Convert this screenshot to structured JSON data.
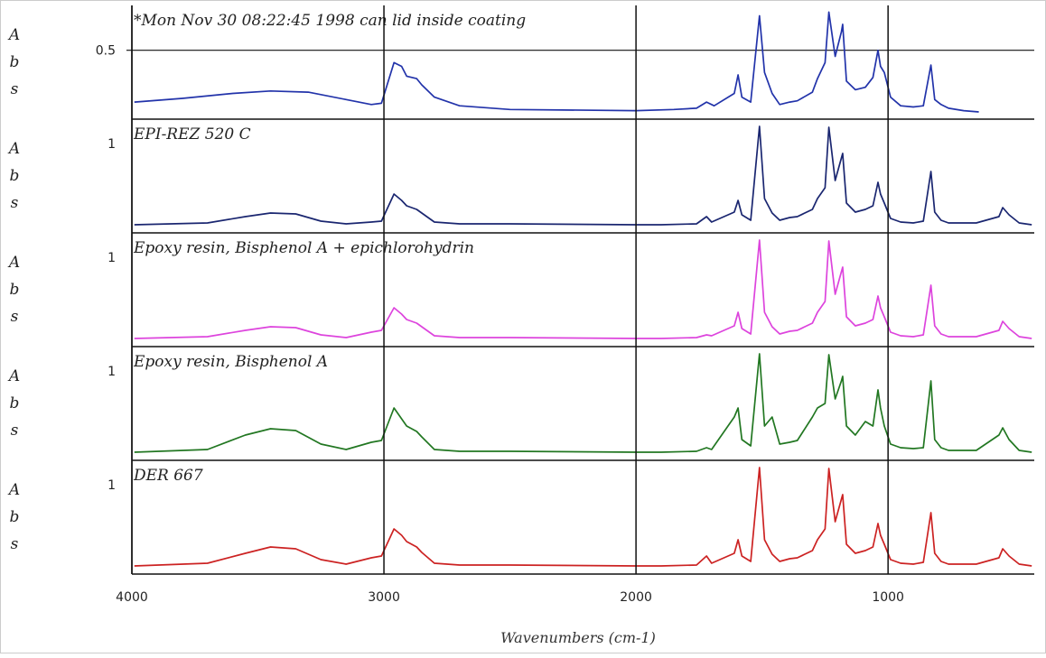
{
  "chart_data": {
    "type": "line",
    "xlabel": "Wavenumbers (cm-1)",
    "x_range": [
      4000,
      420
    ],
    "x_reversed": true,
    "x_ticks": [
      4000,
      3000,
      2000,
      1000
    ],
    "x_tick_labels": [
      "4000",
      "3000",
      "2000",
      "1000"
    ],
    "grid": true,
    "panels": [
      {
        "title": "*Mon Nov 30 08:22:45 1998 can lid inside coating",
        "ylabel_chars": [
          "A",
          "b",
          "s"
        ],
        "y_tick_label": "0.5",
        "y_tick_value": 0.5,
        "ylim": [
          0.0,
          0.82
        ],
        "color": "#2233aa",
        "points": [
          [
            3990,
            0.08
          ],
          [
            3800,
            0.11
          ],
          [
            3600,
            0.15
          ],
          [
            3450,
            0.17
          ],
          [
            3300,
            0.16
          ],
          [
            3150,
            0.1
          ],
          [
            3050,
            0.06
          ],
          [
            3010,
            0.07
          ],
          [
            2960,
            0.4
          ],
          [
            2930,
            0.37
          ],
          [
            2910,
            0.29
          ],
          [
            2870,
            0.27
          ],
          [
            2850,
            0.22
          ],
          [
            2800,
            0.12
          ],
          [
            2700,
            0.05
          ],
          [
            2500,
            0.02
          ],
          [
            2000,
            0.01
          ],
          [
            1850,
            0.02
          ],
          [
            1760,
            0.03
          ],
          [
            1720,
            0.08
          ],
          [
            1690,
            0.05
          ],
          [
            1610,
            0.15
          ],
          [
            1595,
            0.3
          ],
          [
            1580,
            0.12
          ],
          [
            1545,
            0.08
          ],
          [
            1510,
            0.78
          ],
          [
            1490,
            0.32
          ],
          [
            1460,
            0.15
          ],
          [
            1430,
            0.06
          ],
          [
            1390,
            0.08
          ],
          [
            1360,
            0.09
          ],
          [
            1300,
            0.16
          ],
          [
            1280,
            0.27
          ],
          [
            1250,
            0.4
          ],
          [
            1235,
            0.81
          ],
          [
            1210,
            0.45
          ],
          [
            1185,
            0.65
          ],
          [
            1180,
            0.71
          ],
          [
            1165,
            0.25
          ],
          [
            1130,
            0.18
          ],
          [
            1090,
            0.2
          ],
          [
            1060,
            0.28
          ],
          [
            1040,
            0.5
          ],
          [
            1030,
            0.37
          ],
          [
            1015,
            0.32
          ],
          [
            990,
            0.12
          ],
          [
            950,
            0.05
          ],
          [
            900,
            0.04
          ],
          [
            860,
            0.05
          ],
          [
            830,
            0.38
          ],
          [
            815,
            0.1
          ],
          [
            790,
            0.06
          ],
          [
            760,
            0.03
          ],
          [
            700,
            0.01
          ],
          [
            640,
            0.0
          ]
        ]
      },
      {
        "title": "EPI-REZ 520 C",
        "ylabel_chars": [
          "A",
          "b",
          "s"
        ],
        "y_tick_label": "1",
        "y_tick_value": 1,
        "ylim": [
          0.0,
          1.12
        ],
        "color": "#1a2670",
        "points": [
          [
            3990,
            0.01
          ],
          [
            3700,
            0.03
          ],
          [
            3550,
            0.1
          ],
          [
            3450,
            0.14
          ],
          [
            3350,
            0.13
          ],
          [
            3250,
            0.05
          ],
          [
            3150,
            0.02
          ],
          [
            3050,
            0.04
          ],
          [
            3010,
            0.05
          ],
          [
            2960,
            0.35
          ],
          [
            2930,
            0.28
          ],
          [
            2910,
            0.22
          ],
          [
            2870,
            0.18
          ],
          [
            2850,
            0.14
          ],
          [
            2800,
            0.04
          ],
          [
            2700,
            0.02
          ],
          [
            2500,
            0.02
          ],
          [
            2000,
            0.01
          ],
          [
            1900,
            0.01
          ],
          [
            1760,
            0.02
          ],
          [
            1720,
            0.1
          ],
          [
            1700,
            0.04
          ],
          [
            1610,
            0.15
          ],
          [
            1595,
            0.28
          ],
          [
            1580,
            0.12
          ],
          [
            1545,
            0.06
          ],
          [
            1510,
            1.1
          ],
          [
            1490,
            0.3
          ],
          [
            1460,
            0.14
          ],
          [
            1430,
            0.06
          ],
          [
            1390,
            0.09
          ],
          [
            1360,
            0.1
          ],
          [
            1300,
            0.18
          ],
          [
            1280,
            0.3
          ],
          [
            1250,
            0.42
          ],
          [
            1235,
            1.09
          ],
          [
            1210,
            0.5
          ],
          [
            1185,
            0.75
          ],
          [
            1180,
            0.8
          ],
          [
            1165,
            0.25
          ],
          [
            1130,
            0.15
          ],
          [
            1090,
            0.18
          ],
          [
            1060,
            0.22
          ],
          [
            1040,
            0.48
          ],
          [
            1030,
            0.35
          ],
          [
            1015,
            0.25
          ],
          [
            990,
            0.08
          ],
          [
            950,
            0.04
          ],
          [
            900,
            0.03
          ],
          [
            860,
            0.05
          ],
          [
            830,
            0.6
          ],
          [
            815,
            0.15
          ],
          [
            790,
            0.06
          ],
          [
            760,
            0.03
          ],
          [
            650,
            0.03
          ],
          [
            560,
            0.1
          ],
          [
            545,
            0.2
          ],
          [
            520,
            0.12
          ],
          [
            480,
            0.03
          ],
          [
            430,
            0.01
          ]
        ]
      },
      {
        "title": "Epoxy resin, Bisphenol A + epichlorohydrin",
        "ylabel_chars": [
          "A",
          "b",
          "s"
        ],
        "y_tick_label": "1",
        "y_tick_value": 1,
        "ylim": [
          0.0,
          1.12
        ],
        "color": "#dd44dd",
        "points": [
          [
            3990,
            0.01
          ],
          [
            3700,
            0.03
          ],
          [
            3550,
            0.1
          ],
          [
            3450,
            0.14
          ],
          [
            3350,
            0.13
          ],
          [
            3250,
            0.05
          ],
          [
            3150,
            0.02
          ],
          [
            3050,
            0.08
          ],
          [
            3010,
            0.1
          ],
          [
            2960,
            0.35
          ],
          [
            2930,
            0.28
          ],
          [
            2910,
            0.22
          ],
          [
            2870,
            0.18
          ],
          [
            2850,
            0.14
          ],
          [
            2800,
            0.04
          ],
          [
            2700,
            0.02
          ],
          [
            2500,
            0.02
          ],
          [
            2000,
            0.01
          ],
          [
            1900,
            0.01
          ],
          [
            1760,
            0.02
          ],
          [
            1720,
            0.05
          ],
          [
            1700,
            0.04
          ],
          [
            1610,
            0.15
          ],
          [
            1595,
            0.3
          ],
          [
            1580,
            0.12
          ],
          [
            1545,
            0.06
          ],
          [
            1510,
            1.1
          ],
          [
            1490,
            0.3
          ],
          [
            1460,
            0.14
          ],
          [
            1430,
            0.06
          ],
          [
            1390,
            0.09
          ],
          [
            1360,
            0.1
          ],
          [
            1300,
            0.18
          ],
          [
            1280,
            0.3
          ],
          [
            1250,
            0.42
          ],
          [
            1235,
            1.09
          ],
          [
            1210,
            0.5
          ],
          [
            1185,
            0.75
          ],
          [
            1180,
            0.8
          ],
          [
            1165,
            0.25
          ],
          [
            1130,
            0.15
          ],
          [
            1090,
            0.18
          ],
          [
            1060,
            0.22
          ],
          [
            1040,
            0.48
          ],
          [
            1030,
            0.35
          ],
          [
            1015,
            0.25
          ],
          [
            990,
            0.08
          ],
          [
            950,
            0.04
          ],
          [
            900,
            0.03
          ],
          [
            860,
            0.05
          ],
          [
            830,
            0.6
          ],
          [
            815,
            0.15
          ],
          [
            790,
            0.06
          ],
          [
            760,
            0.03
          ],
          [
            650,
            0.03
          ],
          [
            560,
            0.1
          ],
          [
            545,
            0.2
          ],
          [
            520,
            0.12
          ],
          [
            480,
            0.03
          ],
          [
            430,
            0.01
          ]
        ]
      },
      {
        "title": "Epoxy resin, Bisphenol A",
        "ylabel_chars": [
          "A",
          "b",
          "s"
        ],
        "y_tick_label": "1",
        "y_tick_value": 1,
        "ylim": [
          0.0,
          1.12
        ],
        "color": "#227722",
        "points": [
          [
            3990,
            0.01
          ],
          [
            3700,
            0.04
          ],
          [
            3550,
            0.2
          ],
          [
            3450,
            0.27
          ],
          [
            3350,
            0.25
          ],
          [
            3250,
            0.1
          ],
          [
            3150,
            0.04
          ],
          [
            3050,
            0.12
          ],
          [
            3010,
            0.14
          ],
          [
            2960,
            0.5
          ],
          [
            2930,
            0.38
          ],
          [
            2910,
            0.3
          ],
          [
            2870,
            0.24
          ],
          [
            2850,
            0.18
          ],
          [
            2800,
            0.04
          ],
          [
            2700,
            0.02
          ],
          [
            2500,
            0.02
          ],
          [
            2000,
            0.01
          ],
          [
            1900,
            0.01
          ],
          [
            1760,
            0.02
          ],
          [
            1720,
            0.06
          ],
          [
            1700,
            0.04
          ],
          [
            1610,
            0.4
          ],
          [
            1595,
            0.5
          ],
          [
            1580,
            0.15
          ],
          [
            1545,
            0.08
          ],
          [
            1510,
            1.1
          ],
          [
            1490,
            0.3
          ],
          [
            1460,
            0.4
          ],
          [
            1430,
            0.1
          ],
          [
            1390,
            0.12
          ],
          [
            1360,
            0.14
          ],
          [
            1300,
            0.4
          ],
          [
            1280,
            0.5
          ],
          [
            1250,
            0.55
          ],
          [
            1235,
            1.09
          ],
          [
            1210,
            0.6
          ],
          [
            1185,
            0.8
          ],
          [
            1180,
            0.85
          ],
          [
            1165,
            0.3
          ],
          [
            1130,
            0.2
          ],
          [
            1090,
            0.35
          ],
          [
            1060,
            0.3
          ],
          [
            1040,
            0.7
          ],
          [
            1030,
            0.5
          ],
          [
            1015,
            0.3
          ],
          [
            990,
            0.1
          ],
          [
            950,
            0.06
          ],
          [
            900,
            0.05
          ],
          [
            860,
            0.06
          ],
          [
            830,
            0.8
          ],
          [
            815,
            0.15
          ],
          [
            790,
            0.06
          ],
          [
            760,
            0.03
          ],
          [
            650,
            0.03
          ],
          [
            560,
            0.2
          ],
          [
            545,
            0.28
          ],
          [
            520,
            0.15
          ],
          [
            480,
            0.03
          ],
          [
            430,
            0.01
          ]
        ]
      },
      {
        "title": "DER 667",
        "ylabel_chars": [
          "A",
          "b",
          "s"
        ],
        "y_tick_label": "1",
        "y_tick_value": 1,
        "ylim": [
          0.0,
          1.12
        ],
        "color": "#cc2222",
        "points": [
          [
            3990,
            0.01
          ],
          [
            3700,
            0.04
          ],
          [
            3550,
            0.15
          ],
          [
            3450,
            0.22
          ],
          [
            3350,
            0.2
          ],
          [
            3250,
            0.08
          ],
          [
            3150,
            0.03
          ],
          [
            3050,
            0.1
          ],
          [
            3010,
            0.12
          ],
          [
            2960,
            0.42
          ],
          [
            2930,
            0.35
          ],
          [
            2910,
            0.28
          ],
          [
            2870,
            0.22
          ],
          [
            2850,
            0.16
          ],
          [
            2800,
            0.04
          ],
          [
            2700,
            0.02
          ],
          [
            2500,
            0.02
          ],
          [
            2000,
            0.01
          ],
          [
            1900,
            0.01
          ],
          [
            1760,
            0.02
          ],
          [
            1720,
            0.12
          ],
          [
            1700,
            0.04
          ],
          [
            1610,
            0.15
          ],
          [
            1595,
            0.3
          ],
          [
            1580,
            0.12
          ],
          [
            1545,
            0.06
          ],
          [
            1510,
            1.1
          ],
          [
            1490,
            0.3
          ],
          [
            1460,
            0.14
          ],
          [
            1430,
            0.06
          ],
          [
            1390,
            0.09
          ],
          [
            1360,
            0.1
          ],
          [
            1300,
            0.18
          ],
          [
            1280,
            0.3
          ],
          [
            1250,
            0.42
          ],
          [
            1235,
            1.09
          ],
          [
            1210,
            0.5
          ],
          [
            1185,
            0.75
          ],
          [
            1180,
            0.8
          ],
          [
            1165,
            0.25
          ],
          [
            1130,
            0.15
          ],
          [
            1090,
            0.18
          ],
          [
            1060,
            0.22
          ],
          [
            1040,
            0.48
          ],
          [
            1030,
            0.35
          ],
          [
            1015,
            0.25
          ],
          [
            990,
            0.08
          ],
          [
            950,
            0.04
          ],
          [
            900,
            0.03
          ],
          [
            860,
            0.05
          ],
          [
            830,
            0.6
          ],
          [
            815,
            0.15
          ],
          [
            790,
            0.06
          ],
          [
            760,
            0.03
          ],
          [
            650,
            0.03
          ],
          [
            560,
            0.1
          ],
          [
            545,
            0.2
          ],
          [
            520,
            0.12
          ],
          [
            480,
            0.03
          ],
          [
            430,
            0.01
          ]
        ]
      }
    ]
  }
}
